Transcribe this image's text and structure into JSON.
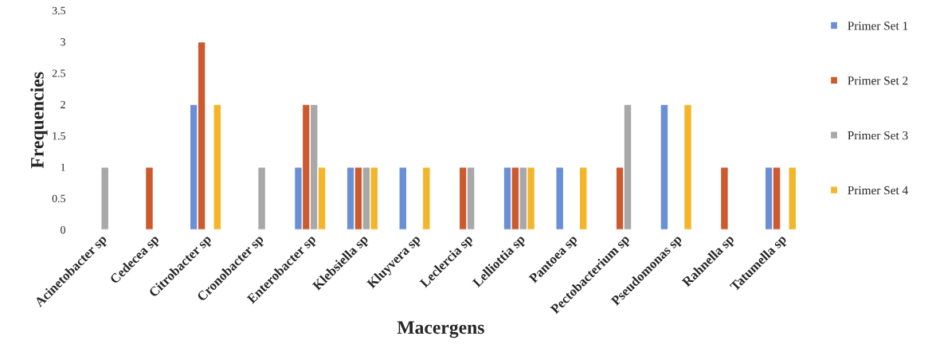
{
  "chart_data": {
    "type": "bar",
    "xlabel": "Macergens",
    "ylabel": "Frequencies",
    "categories": [
      "Acinetobacter sp",
      "Cedecea sp",
      "Citrobacter sp",
      "Cronobacter sp",
      "Enterobacter sp",
      "Klebsiella sp",
      "Kluyvera sp",
      "Leclercia sp",
      "Lelliottia sp",
      "Pantoea sp",
      "Pectobacterium sp",
      "Pseudomonas sp",
      "Rahnella sp",
      "Tatumella sp"
    ],
    "series": [
      {
        "name": "Primer Set 1",
        "color": "#6a8fd6",
        "values": [
          null,
          null,
          2,
          null,
          1,
          1,
          1,
          null,
          1,
          1,
          null,
          2,
          null,
          1
        ]
      },
      {
        "name": "Primer Set 2",
        "color": "#cc5a2e",
        "values": [
          null,
          1,
          3,
          null,
          2,
          1,
          null,
          1,
          1,
          null,
          1,
          null,
          1,
          1
        ]
      },
      {
        "name": "Primer Set 3",
        "color": "#a8a8a8",
        "values": [
          1,
          null,
          null,
          1,
          2,
          1,
          null,
          1,
          1,
          null,
          2,
          null,
          null,
          null
        ]
      },
      {
        "name": "Primer Set 4",
        "color": "#f3b62a",
        "values": [
          null,
          null,
          2,
          null,
          1,
          1,
          1,
          null,
          1,
          1,
          null,
          2,
          null,
          1
        ]
      }
    ],
    "ylim": [
      0,
      3.5
    ],
    "yticks": [
      0,
      0.5,
      1,
      1.5,
      2,
      2.5,
      3,
      3.5
    ],
    "grid": false,
    "legend": "right"
  }
}
